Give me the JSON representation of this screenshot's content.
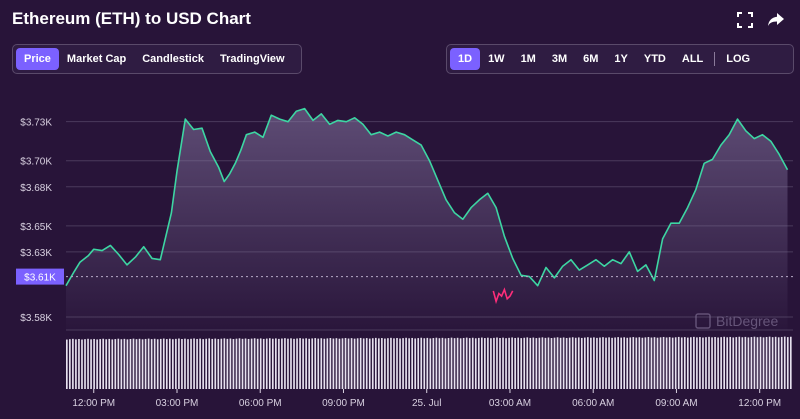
{
  "header": {
    "title": "Ethereum (ETH) to USD Chart",
    "fullscreen_icon": "fullscreen-icon",
    "share_icon": "share-arrow-icon"
  },
  "chart_type_tabs": [
    {
      "label": "Price",
      "active": true
    },
    {
      "label": "Market Cap",
      "active": false
    },
    {
      "label": "Candlestick",
      "active": false
    },
    {
      "label": "TradingView",
      "active": false
    }
  ],
  "range_tabs": [
    {
      "label": "1D",
      "active": true
    },
    {
      "label": "1W",
      "active": false
    },
    {
      "label": "1M",
      "active": false
    },
    {
      "label": "3M",
      "active": false
    },
    {
      "label": "6M",
      "active": false
    },
    {
      "label": "1Y",
      "active": false
    },
    {
      "label": "YTD",
      "active": false
    },
    {
      "label": "ALL",
      "active": false
    }
  ],
  "log_label": "LOG",
  "current_price_label": "$3.61K",
  "watermark": "BitDegree",
  "colors": {
    "background": "#281439",
    "line_up": "#3dd6a3",
    "line_down": "#ff2d7a",
    "accent": "#7b61ff",
    "grid": "#4a3a5c",
    "axis_text": "#d8d0e0"
  },
  "chart_data": {
    "type": "area",
    "title": "Ethereum (ETH) to USD Chart",
    "xlabel": "",
    "ylabel": "",
    "y_ticks": [
      {
        "label": "$3.73K",
        "value": 3730
      },
      {
        "label": "$3.70K",
        "value": 3700
      },
      {
        "label": "$3.68K",
        "value": 3680
      },
      {
        "label": "$3.65K",
        "value": 3650
      },
      {
        "label": "$3.63K",
        "value": 3630
      },
      {
        "label": "$3.58K",
        "value": 3580
      }
    ],
    "x_ticks": [
      {
        "label": "12:00 PM",
        "t": 1.0
      },
      {
        "label": "03:00 PM",
        "t": 4.0
      },
      {
        "label": "06:00 PM",
        "t": 7.0
      },
      {
        "label": "09:00 PM",
        "t": 10.0
      },
      {
        "label": "25. Jul",
        "t": 13.0
      },
      {
        "label": "03:00 AM",
        "t": 16.0
      },
      {
        "label": "06:00 AM",
        "t": 19.0
      },
      {
        "label": "09:00 AM",
        "t": 22.0
      },
      {
        "label": "12:00 PM",
        "t": 25.0
      }
    ],
    "time_unit": "hours from 11:00 AM",
    "ylim": [
      3570,
      3762
    ],
    "xlim": [
      0,
      26.2
    ],
    "current_price": 3611,
    "grid": true,
    "price_series": {
      "name": "Price",
      "t": [
        0,
        0.3,
        0.5,
        0.8,
        1.0,
        1.3,
        1.6,
        1.9,
        2.2,
        2.5,
        2.8,
        3.1,
        3.4,
        3.8,
        4.0,
        4.3,
        4.6,
        4.9,
        5.2,
        5.5,
        5.7,
        5.9,
        6.1,
        6.3,
        6.5,
        6.8,
        7.1,
        7.4,
        7.7,
        8.0,
        8.3,
        8.6,
        8.9,
        9.2,
        9.5,
        9.8,
        10.1,
        10.4,
        10.7,
        11.0,
        11.3,
        11.6,
        11.9,
        12.2,
        12.5,
        12.8,
        13.1,
        13.4,
        13.7,
        14.0,
        14.3,
        14.6,
        14.9,
        15.2,
        15.5,
        15.8,
        16.1,
        16.4,
        16.7,
        17.0,
        17.3,
        17.6,
        17.9,
        18.2,
        18.5,
        18.8,
        19.1,
        19.4,
        19.7,
        20.0,
        20.3,
        20.6,
        20.9,
        21.2,
        21.5,
        21.8,
        22.1,
        22.4,
        22.7,
        23.0,
        23.3,
        23.6,
        23.9,
        24.2,
        24.5,
        24.8,
        25.1,
        25.4,
        25.7,
        26.0
      ],
      "values": [
        3604,
        3615,
        3622,
        3627,
        3632,
        3631,
        3635,
        3628,
        3620,
        3626,
        3634,
        3625,
        3624,
        3660,
        3692,
        3732,
        3724,
        3725,
        3707,
        3695,
        3684,
        3690,
        3698,
        3708,
        3720,
        3722,
        3718,
        3735,
        3732,
        3730,
        3738,
        3740,
        3731,
        3736,
        3728,
        3731,
        3730,
        3733,
        3728,
        3720,
        3722,
        3719,
        3722,
        3720,
        3716,
        3712,
        3700,
        3685,
        3670,
        3660,
        3655,
        3664,
        3670,
        3675,
        3664,
        3642,
        3625,
        3612,
        3611,
        3604,
        3618,
        3610,
        3619,
        3624,
        3616,
        3620,
        3624,
        3619,
        3624,
        3621,
        3630,
        3615,
        3620,
        3608,
        3640,
        3652,
        3652,
        3664,
        3678,
        3698,
        3701,
        3712,
        3720,
        3732,
        3723,
        3717,
        3720,
        3715,
        3705,
        3693
      ]
    },
    "dip_segment": {
      "name": "",
      "t_start": 15.4,
      "t_end": 16.1,
      "values": [
        3600,
        3592,
        3598,
        3596,
        3601,
        3594,
        3596,
        3600
      ]
    },
    "volume": {
      "bar_count": 240,
      "level_pct_start": 78,
      "level_pct_end": 82
    }
  }
}
